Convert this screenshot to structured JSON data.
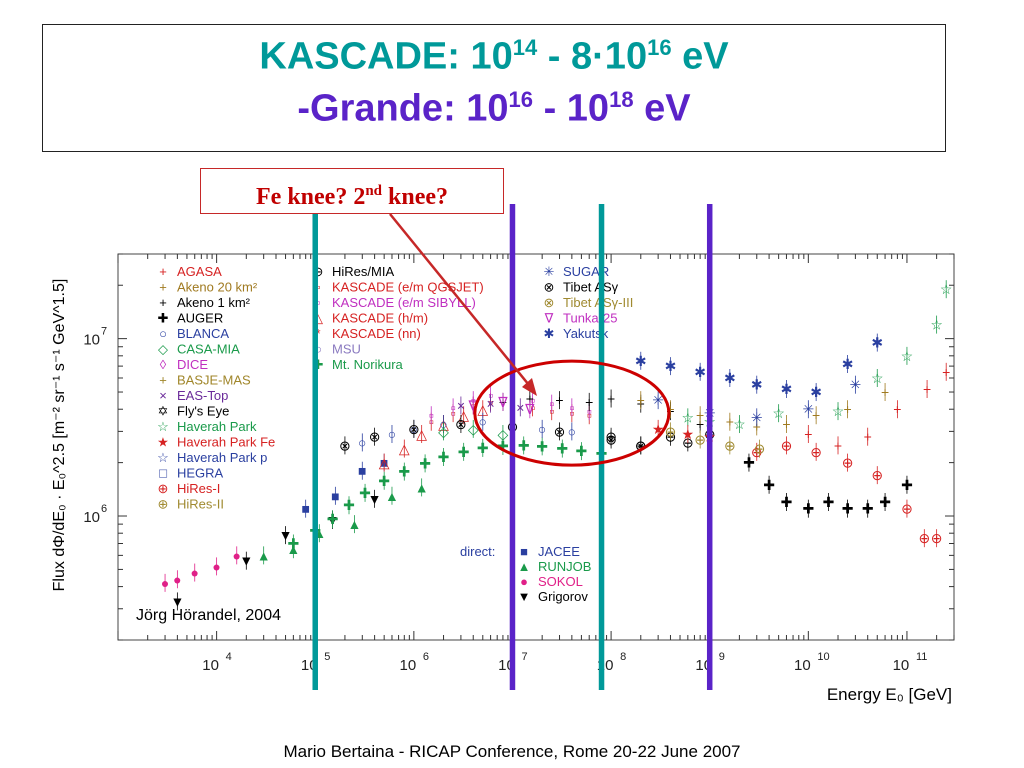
{
  "slide": {
    "title": {
      "line1_prefix": "KASCADE: 10",
      "line1_sup1": "14",
      "line1_mid": " - 8·10",
      "line1_sup2": "16",
      "line1_suffix": " eV",
      "line2_prefix": "-Grande: 10",
      "line2_sup1": "16",
      "line2_mid": " - 10",
      "line2_sup2": "18",
      "line2_suffix": " eV"
    },
    "callout": {
      "prefix": "Fe knee?  2",
      "sup": "nd",
      "suffix": " knee?"
    },
    "footer": "Mario Bertaina - RICAP Conference, Rome 20-22 June 2007",
    "credit": "Jörg Hörandel, 2004",
    "colors": {
      "teal": "#009999",
      "purple": "#5a23c8",
      "red": "#c00000"
    }
  },
  "chart_data": {
    "type": "scatter",
    "title": "",
    "xlabel": "Energy E₀ [GeV]",
    "ylabel": "Flux dΦ/dE₀ · E₀^2.5 [m⁻² sr⁻¹ s⁻¹ GeV^1.5]",
    "x_scale": "log",
    "y_scale": "log",
    "xlim": [
      1000,
      300000000000
    ],
    "ylim": [
      200000,
      30000000
    ],
    "x_ticks": [
      {
        "value": 10000,
        "base": "10",
        "exp": "4"
      },
      {
        "value": 100000,
        "base": "10",
        "exp": "5"
      },
      {
        "value": 1000000,
        "base": "10",
        "exp": "6"
      },
      {
        "value": 10000000,
        "base": "10",
        "exp": "7"
      },
      {
        "value": 100000000,
        "base": "10",
        "exp": "8"
      },
      {
        "value": 1000000000,
        "base": "10",
        "exp": "9"
      },
      {
        "value": 10000000000,
        "base": "10",
        "exp": "10"
      },
      {
        "value": 100000000000,
        "base": "10",
        "exp": "11"
      }
    ],
    "y_ticks": [
      {
        "value": 1000000,
        "base": "10",
        "exp": "6"
      },
      {
        "value": 10000000,
        "base": "10",
        "exp": "7"
      }
    ],
    "vertical_markers": [
      {
        "x": 100000,
        "color": "#009999"
      },
      {
        "x": 10000000,
        "color": "#5a23c8"
      },
      {
        "x": 80000000,
        "color": "#009999"
      },
      {
        "x": 1000000000,
        "color": "#5a23c8"
      }
    ],
    "highlight_ellipse": {
      "x_center": 40000000,
      "y_center": 3800000,
      "color": "#cc0000"
    },
    "legend": {
      "col1": [
        {
          "label": "AGASA",
          "symbol": "+",
          "color": "#d62222"
        },
        {
          "label": "Akeno 20 km²",
          "symbol": "+",
          "color": "#a07a20"
        },
        {
          "label": "Akeno 1 km²",
          "symbol": "+",
          "color": "#000000"
        },
        {
          "label": "AUGER",
          "symbol": "✚",
          "color": "#000000"
        },
        {
          "label": "BLANCA",
          "symbol": "○",
          "color": "#2a3fa0"
        },
        {
          "label": "CASA-MIA",
          "symbol": "◇",
          "color": "#1a9a4a"
        },
        {
          "label": "DICE",
          "symbol": "◊",
          "color": "#c02fc0"
        },
        {
          "label": "BASJE-MAS",
          "symbol": "+",
          "color": "#a0862a"
        },
        {
          "label": "EAS-Top",
          "symbol": "×",
          "color": "#6a2a9a"
        },
        {
          "label": "Fly's Eye",
          "symbol": "✡",
          "color": "#000000"
        },
        {
          "label": "Haverah Park",
          "symbol": "☆",
          "color": "#1a9a4a"
        },
        {
          "label": "Haverah Park Fe",
          "symbol": "★",
          "color": "#d62222"
        },
        {
          "label": "Haverah Park p",
          "symbol": "☆",
          "color": "#2a3fa0"
        },
        {
          "label": "HEGRA",
          "symbol": "□",
          "color": "#2a3fa0"
        },
        {
          "label": "HiRes-I",
          "symbol": "⊕",
          "color": "#d62222"
        },
        {
          "label": "HiRes-II",
          "symbol": "⊕",
          "color": "#a08a30"
        }
      ],
      "col2": [
        {
          "label": "HiRes/MIA",
          "symbol": "⊖",
          "color": "#000000"
        },
        {
          "label": "KASCADE (e/m QGSJET)",
          "symbol": "▫",
          "color": "#d62222"
        },
        {
          "label": "KASCADE (e/m SIBYLL)",
          "symbol": "▫",
          "color": "#c02fc0"
        },
        {
          "label": "KASCADE (h/m)",
          "symbol": "△",
          "color": "#d62222"
        },
        {
          "label": "KASCADE (nn)",
          "symbol": "*",
          "color": "#d62222"
        },
        {
          "label": "MSU",
          "symbol": "○",
          "color": "#8a7ac0"
        },
        {
          "label": "Mt. Norikura",
          "symbol": "✚",
          "color": "#1a9a4a"
        }
      ],
      "col3": [
        {
          "label": "SUGAR",
          "symbol": "✳",
          "color": "#2a3fa0"
        },
        {
          "label": "Tibet ASγ",
          "symbol": "⊗",
          "color": "#000000"
        },
        {
          "label": "Tibet ASγ-III",
          "symbol": "⊗",
          "color": "#a08a30"
        },
        {
          "label": "Tunka-25",
          "symbol": "∇",
          "color": "#c02fc0"
        },
        {
          "label": "Yakutsk",
          "symbol": "✱",
          "color": "#2a3fa0"
        }
      ],
      "direct_label": "direct:",
      "direct": [
        {
          "label": "JACEE",
          "symbol": "■",
          "color": "#2a3fa0"
        },
        {
          "label": "RUNJOB",
          "symbol": "▲",
          "color": "#1a9a4a"
        },
        {
          "label": "SOKOL",
          "symbol": "●",
          "color": "#e02088"
        },
        {
          "label": "Grigorov",
          "symbol": "▼",
          "color": "#000000"
        }
      ]
    },
    "series": [
      {
        "name": "SOKOL",
        "symbol": "●",
        "color": "#e02088",
        "points": [
          [
            3000,
            420000
          ],
          [
            4000,
            440000
          ],
          [
            6000,
            480000
          ],
          [
            10000,
            520000
          ],
          [
            16000,
            600000
          ]
        ]
      },
      {
        "name": "Grigorov",
        "symbol": "▼",
        "color": "#000000",
        "points": [
          [
            4000,
            330000
          ],
          [
            20000,
            560000
          ],
          [
            50000,
            780000
          ],
          [
            150000,
            950000
          ],
          [
            400000,
            1250000
          ]
        ]
      },
      {
        "name": "RUNJOB",
        "symbol": "▲",
        "color": "#1a9a4a",
        "points": [
          [
            30000,
            600000
          ],
          [
            60000,
            650000
          ],
          [
            110000,
            800000
          ],
          [
            250000,
            900000
          ],
          [
            600000,
            1300000
          ],
          [
            1200000,
            1450000
          ]
        ]
      },
      {
        "name": "JACEE",
        "symbol": "■",
        "color": "#2a3fa0",
        "points": [
          [
            80000,
            1100000
          ],
          [
            160000,
            1300000
          ],
          [
            300000,
            1800000
          ],
          [
            500000,
            2000000
          ]
        ]
      },
      {
        "name": "Mt. Norikura",
        "symbol": "✚",
        "color": "#1a9a4a",
        "points": [
          [
            60000,
            700000
          ],
          [
            100000,
            830000
          ],
          [
            150000,
            960000
          ],
          [
            220000,
            1150000
          ],
          [
            320000,
            1350000
          ],
          [
            500000,
            1580000
          ],
          [
            800000,
            1780000
          ],
          [
            1300000,
            1980000
          ],
          [
            2000000,
            2150000
          ],
          [
            3200000,
            2300000
          ],
          [
            5000000,
            2420000
          ],
          [
            8000000,
            2480000
          ],
          [
            13000000,
            2500000
          ],
          [
            20000000,
            2470000
          ],
          [
            32000000,
            2400000
          ],
          [
            50000000,
            2320000
          ],
          [
            80000000,
            2250000
          ]
        ]
      },
      {
        "name": "KASCADE (h/m)",
        "symbol": "△",
        "color": "#d62222",
        "points": [
          [
            500000,
            2000000
          ],
          [
            800000,
            2400000
          ],
          [
            1200000,
            2900000
          ],
          [
            2000000,
            3300000
          ],
          [
            3200000,
            3700000
          ],
          [
            5000000,
            4000000
          ]
        ]
      },
      {
        "name": "KASCADE (e/m QGSJET)",
        "symbol": "▫",
        "color": "#d62222",
        "points": [
          [
            1500000,
            3400000
          ],
          [
            2500000,
            3800000
          ],
          [
            4000000,
            4200000
          ],
          [
            6000000,
            4400000
          ],
          [
            10000000,
            4300000
          ],
          [
            16000000,
            4100000
          ],
          [
            25000000,
            3900000
          ],
          [
            40000000,
            3800000
          ],
          [
            60000000,
            3700000
          ]
        ]
      },
      {
        "name": "KASCADE (e/m SIBYLL)",
        "symbol": "▫",
        "color": "#c02fc0",
        "points": [
          [
            1500000,
            3700000
          ],
          [
            2500000,
            4100000
          ],
          [
            4000000,
            4500000
          ],
          [
            6000000,
            4800000
          ],
          [
            10000000,
            4700000
          ],
          [
            16000000,
            4500000
          ],
          [
            25000000,
            4300000
          ],
          [
            40000000,
            4100000
          ],
          [
            60000000,
            3900000
          ]
        ]
      },
      {
        "name": "BLANCA",
        "symbol": "○",
        "color": "#2a3fa0",
        "points": [
          [
            300000,
            2600000
          ],
          [
            600000,
            2900000
          ],
          [
            1000000,
            3100000
          ],
          [
            2000000,
            3300000
          ],
          [
            5000000,
            3400000
          ],
          [
            10000000,
            3200000
          ],
          [
            20000000,
            3100000
          ],
          [
            40000000,
            3000000
          ]
        ]
      },
      {
        "name": "Tibet ASγ",
        "symbol": "⊗",
        "color": "#000000",
        "points": [
          [
            200000,
            2500000
          ],
          [
            400000,
            2800000
          ],
          [
            1000000,
            3100000
          ],
          [
            3000000,
            3300000
          ],
          [
            10000000,
            3200000
          ],
          [
            30000000,
            3000000
          ],
          [
            100000000,
            2700000
          ],
          [
            200000000,
            2500000
          ]
        ]
      },
      {
        "name": "Akeno 1 km²",
        "symbol": "+",
        "color": "#000000",
        "points": [
          [
            8000000,
            4400000
          ],
          [
            15000000,
            4600000
          ],
          [
            30000000,
            4500000
          ],
          [
            60000000,
            4400000
          ],
          [
            100000000,
            4600000
          ],
          [
            200000000,
            4300000
          ],
          [
            400000000,
            3900000
          ],
          [
            800000000,
            3300000
          ]
        ]
      },
      {
        "name": "HiRes/MIA",
        "symbol": "⊖",
        "color": "#000000",
        "points": [
          [
            100000000,
            2800000
          ],
          [
            200000000,
            2500000
          ],
          [
            400000000,
            2800000
          ],
          [
            600000000,
            2600000
          ],
          [
            1000000000,
            2900000
          ]
        ]
      },
      {
        "name": "Yakutsk",
        "symbol": "✱",
        "color": "#2a3fa0",
        "points": [
          [
            200000000,
            7500000
          ],
          [
            400000000,
            7000000
          ],
          [
            800000000,
            6500000
          ],
          [
            1600000000,
            6000000
          ],
          [
            3000000000,
            5500000
          ],
          [
            6000000000,
            5200000
          ],
          [
            12000000000,
            5000000
          ],
          [
            25000000000,
            7200000
          ],
          [
            50000000000,
            9500000
          ]
        ]
      },
      {
        "name": "AUGER",
        "symbol": "✚",
        "color": "#000000",
        "points": [
          [
            2500000000,
            2000000
          ],
          [
            4000000000,
            1500000
          ],
          [
            6000000000,
            1200000
          ],
          [
            10000000000,
            1100000
          ],
          [
            16000000000,
            1200000
          ],
          [
            25000000000,
            1100000
          ],
          [
            40000000000,
            1100000
          ],
          [
            60000000000,
            1200000
          ],
          [
            100000000000,
            1500000
          ]
        ]
      },
      {
        "name": "Akeno 20 km²",
        "symbol": "+",
        "color": "#a07a20",
        "points": [
          [
            200000000,
            4500000
          ],
          [
            400000000,
            4000000
          ],
          [
            800000000,
            3700000
          ],
          [
            1600000000,
            3400000
          ],
          [
            3000000000,
            3200000
          ],
          [
            6000000000,
            3300000
          ],
          [
            12000000000,
            3700000
          ],
          [
            25000000000,
            4000000
          ],
          [
            60000000000,
            5000000
          ]
        ]
      },
      {
        "name": "AGASA",
        "symbol": "+",
        "color": "#d62222",
        "points": [
          [
            10000000000,
            2900000
          ],
          [
            20000000000,
            2500000
          ],
          [
            40000000000,
            2800000
          ],
          [
            80000000000,
            4000000
          ],
          [
            160000000000,
            5200000
          ],
          [
            250000000000,
            6500000
          ]
        ]
      },
      {
        "name": "HiRes-I",
        "symbol": "⊕",
        "color": "#d62222",
        "points": [
          [
            3000000000,
            2300000
          ],
          [
            6000000000,
            2500000
          ],
          [
            12000000000,
            2300000
          ],
          [
            25000000000,
            2000000
          ],
          [
            50000000000,
            1700000
          ],
          [
            100000000000,
            1100000
          ],
          [
            150000000000,
            750000
          ],
          [
            200000000000,
            750000
          ]
        ]
      },
      {
        "name": "HiRes-II",
        "symbol": "⊕",
        "color": "#a08a30",
        "points": [
          [
            400000000,
            3000000
          ],
          [
            800000000,
            2700000
          ],
          [
            1600000000,
            2500000
          ],
          [
            3200000000,
            2400000
          ]
        ]
      },
      {
        "name": "Haverah Park",
        "symbol": "☆",
        "color": "#1a9a4a",
        "points": [
          [
            600000000,
            3600000
          ],
          [
            1000000000,
            3400000
          ],
          [
            2000000000,
            3300000
          ],
          [
            5000000000,
            3800000
          ],
          [
            20000000000,
            3900000
          ],
          [
            50000000000,
            6000000
          ],
          [
            100000000000,
            8000000
          ],
          [
            200000000000,
            12000000
          ],
          [
            250000000000,
            19000000
          ]
        ]
      },
      {
        "name": "SUGAR",
        "symbol": "✳",
        "color": "#2a3fa0",
        "points": [
          [
            300000000,
            4500000
          ],
          [
            1000000000,
            3800000
          ],
          [
            3000000000,
            3600000
          ],
          [
            10000000000,
            4000000
          ],
          [
            30000000000,
            5500000
          ]
        ]
      },
      {
        "name": "Haverah Park Fe",
        "symbol": "★",
        "color": "#d62222",
        "points": [
          [
            300000000,
            3100000
          ],
          [
            600000000,
            2900000
          ],
          [
            1000000000,
            2800000
          ]
        ]
      },
      {
        "name": "CASA-MIA",
        "symbol": "◇",
        "color": "#1a9a4a",
        "points": [
          [
            2000000,
            3000000
          ],
          [
            4000000,
            3100000
          ],
          [
            8000000,
            2900000
          ]
        ]
      },
      {
        "name": "EAS-Top",
        "symbol": "×",
        "color": "#6a2a9a",
        "points": [
          [
            3000000,
            4200000
          ],
          [
            6000000,
            4300000
          ],
          [
            12000000,
            4100000
          ]
        ]
      },
      {
        "name": "Tunka-25",
        "symbol": "∇",
        "color": "#c02fc0",
        "points": [
          [
            4000000,
            4200000
          ],
          [
            8000000,
            4400000
          ],
          [
            15000000,
            4000000
          ]
        ]
      }
    ]
  }
}
